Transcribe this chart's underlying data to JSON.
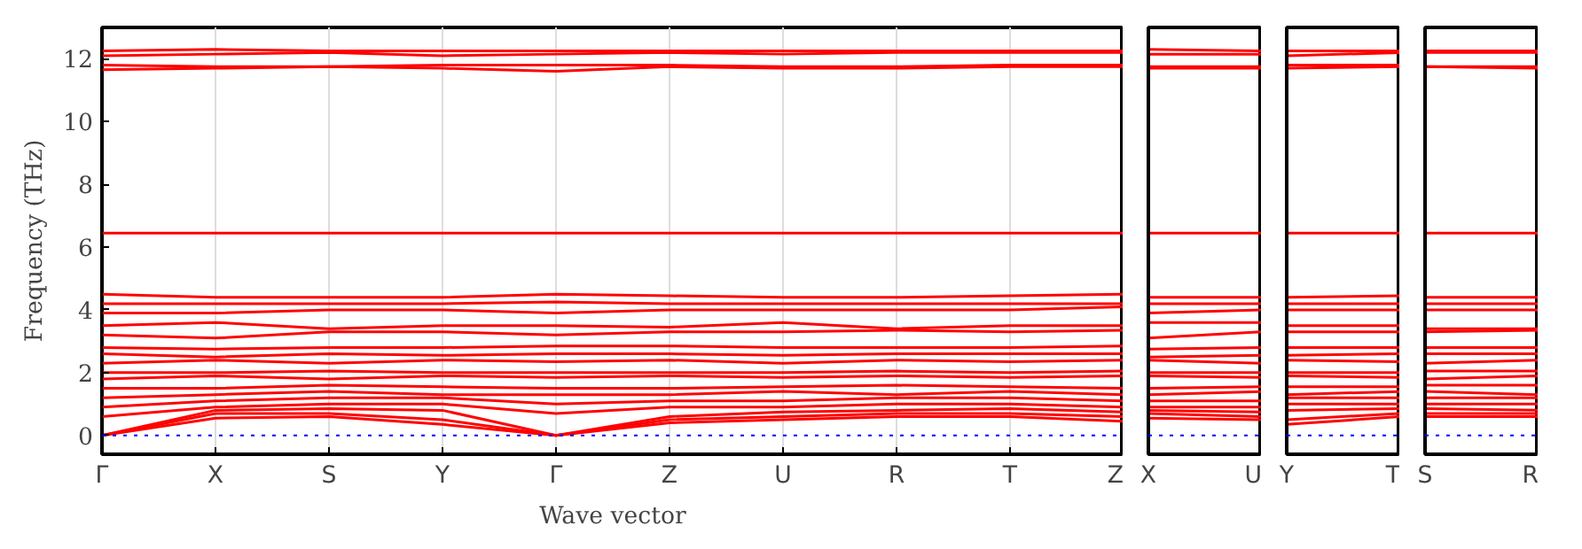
{
  "chart_data": [
    {
      "type": "line",
      "ylabel": "Frequency (THz)",
      "xlabel": "Wave vector",
      "color": "#ff0000",
      "line_style": "solid",
      "grid": "x",
      "ylim": [
        -0.6,
        13
      ],
      "yticks": [
        0,
        2,
        4,
        6,
        8,
        10,
        12
      ],
      "categories": [
        "Γ",
        "X",
        "S",
        "Y",
        "Γ",
        "Z",
        "U",
        "R",
        "T",
        "Z"
      ],
      "ref_lines": [
        {
          "axis": "y",
          "value": 0,
          "color": "#0000ff",
          "line_style": "dotted"
        }
      ],
      "series": [
        {
          "values": [
            0,
            0.55,
            0.6,
            0.35,
            0,
            0.4,
            0.5,
            0.6,
            0.6,
            0.45
          ]
        },
        {
          "values": [
            0,
            0.7,
            0.7,
            0.5,
            0,
            0.5,
            0.6,
            0.7,
            0.7,
            0.6
          ]
        },
        {
          "values": [
            0,
            0.8,
            0.85,
            0.8,
            0,
            0.6,
            0.75,
            0.8,
            0.85,
            0.75
          ]
        },
        {
          "values": [
            0.6,
            0.9,
            1.0,
            1.0,
            0.7,
            0.9,
            0.9,
            1.0,
            1.0,
            0.9
          ]
        },
        {
          "values": [
            0.9,
            1.1,
            1.2,
            1.2,
            1.0,
            1.1,
            1.1,
            1.2,
            1.2,
            1.1
          ]
        },
        {
          "values": [
            1.2,
            1.3,
            1.4,
            1.3,
            1.3,
            1.3,
            1.4,
            1.3,
            1.4,
            1.3
          ]
        },
        {
          "values": [
            1.5,
            1.5,
            1.6,
            1.55,
            1.5,
            1.5,
            1.55,
            1.6,
            1.55,
            1.5
          ]
        },
        {
          "values": [
            1.8,
            1.9,
            1.8,
            1.9,
            1.85,
            1.9,
            1.85,
            1.9,
            1.85,
            1.9
          ]
        },
        {
          "values": [
            2.0,
            2.0,
            2.05,
            2.0,
            2.0,
            2.0,
            2.0,
            2.05,
            2.0,
            2.05
          ]
        },
        {
          "values": [
            2.3,
            2.4,
            2.3,
            2.4,
            2.35,
            2.4,
            2.3,
            2.4,
            2.35,
            2.4
          ]
        },
        {
          "values": [
            2.6,
            2.5,
            2.6,
            2.55,
            2.6,
            2.6,
            2.55,
            2.6,
            2.6,
            2.6
          ]
        },
        {
          "values": [
            2.8,
            2.75,
            2.8,
            2.8,
            2.85,
            2.85,
            2.8,
            2.8,
            2.8,
            2.85
          ]
        },
        {
          "values": [
            3.2,
            3.1,
            3.3,
            3.3,
            3.2,
            3.3,
            3.3,
            3.35,
            3.3,
            3.35
          ]
        },
        {
          "values": [
            3.5,
            3.6,
            3.4,
            3.5,
            3.5,
            3.45,
            3.6,
            3.4,
            3.5,
            3.5
          ]
        },
        {
          "values": [
            3.9,
            3.9,
            4.0,
            4.0,
            3.9,
            4.0,
            4.0,
            4.0,
            4.0,
            4.1
          ]
        },
        {
          "values": [
            4.2,
            4.2,
            4.2,
            4.2,
            4.25,
            4.2,
            4.2,
            4.2,
            4.2,
            4.2
          ]
        },
        {
          "values": [
            4.5,
            4.4,
            4.4,
            4.4,
            4.5,
            4.45,
            4.4,
            4.4,
            4.45,
            4.5
          ]
        },
        {
          "values": [
            6.45,
            6.45,
            6.45,
            6.45,
            6.45,
            6.45,
            6.45,
            6.45,
            6.45,
            6.45
          ]
        },
        {
          "values": [
            11.65,
            11.7,
            11.75,
            11.7,
            11.6,
            11.75,
            11.7,
            11.7,
            11.75,
            11.75
          ]
        },
        {
          "values": [
            11.8,
            11.75,
            11.75,
            11.8,
            11.8,
            11.8,
            11.75,
            11.75,
            11.8,
            11.8
          ]
        },
        {
          "values": [
            12.1,
            12.15,
            12.2,
            12.1,
            12.15,
            12.2,
            12.15,
            12.2,
            12.2,
            12.2
          ]
        },
        {
          "values": [
            12.25,
            12.3,
            12.25,
            12.25,
            12.25,
            12.25,
            12.25,
            12.25,
            12.25,
            12.25
          ]
        }
      ]
    },
    {
      "type": "line",
      "color": "#ff0000",
      "line_style": "solid",
      "grid": "x",
      "tick_labels": "x",
      "ylim": [
        -0.6,
        13
      ],
      "yticks": [
        0,
        2,
        4,
        6,
        8,
        10,
        12
      ],
      "categories": [
        "X",
        "U"
      ],
      "ref_lines": [
        {
          "axis": "y",
          "value": 0,
          "color": "#0000ff",
          "line_style": "dotted"
        }
      ],
      "series": [
        {
          "values": [
            0.55,
            0.5
          ]
        },
        {
          "values": [
            0.7,
            0.6
          ]
        },
        {
          "values": [
            0.8,
            0.75
          ]
        },
        {
          "values": [
            0.9,
            0.9
          ]
        },
        {
          "values": [
            1.1,
            1.1
          ]
        },
        {
          "values": [
            1.3,
            1.4
          ]
        },
        {
          "values": [
            1.5,
            1.55
          ]
        },
        {
          "values": [
            1.9,
            1.85
          ]
        },
        {
          "values": [
            2.0,
            2.0
          ]
        },
        {
          "values": [
            2.4,
            2.3
          ]
        },
        {
          "values": [
            2.5,
            2.55
          ]
        },
        {
          "values": [
            2.75,
            2.8
          ]
        },
        {
          "values": [
            3.1,
            3.3
          ]
        },
        {
          "values": [
            3.6,
            3.6
          ]
        },
        {
          "values": [
            3.9,
            4.0
          ]
        },
        {
          "values": [
            4.2,
            4.2
          ]
        },
        {
          "values": [
            4.4,
            4.4
          ]
        },
        {
          "values": [
            6.45,
            6.45
          ]
        },
        {
          "values": [
            11.7,
            11.7
          ]
        },
        {
          "values": [
            11.75,
            11.75
          ]
        },
        {
          "values": [
            12.15,
            12.15
          ]
        },
        {
          "values": [
            12.3,
            12.25
          ]
        }
      ]
    },
    {
      "type": "line",
      "color": "#ff0000",
      "line_style": "solid",
      "grid": "x",
      "tick_labels": "x",
      "ylim": [
        -0.6,
        13
      ],
      "yticks": [
        0,
        2,
        4,
        6,
        8,
        10,
        12
      ],
      "categories": [
        "Y",
        "T"
      ],
      "ref_lines": [
        {
          "axis": "y",
          "value": 0,
          "color": "#0000ff",
          "line_style": "dotted"
        }
      ],
      "series": [
        {
          "values": [
            0.35,
            0.6
          ]
        },
        {
          "values": [
            0.5,
            0.7
          ]
        },
        {
          "values": [
            0.8,
            0.85
          ]
        },
        {
          "values": [
            1.0,
            1.0
          ]
        },
        {
          "values": [
            1.2,
            1.2
          ]
        },
        {
          "values": [
            1.3,
            1.4
          ]
        },
        {
          "values": [
            1.55,
            1.55
          ]
        },
        {
          "values": [
            1.9,
            1.85
          ]
        },
        {
          "values": [
            2.0,
            2.0
          ]
        },
        {
          "values": [
            2.4,
            2.35
          ]
        },
        {
          "values": [
            2.55,
            2.6
          ]
        },
        {
          "values": [
            2.8,
            2.8
          ]
        },
        {
          "values": [
            3.3,
            3.3
          ]
        },
        {
          "values": [
            3.5,
            3.5
          ]
        },
        {
          "values": [
            4.0,
            4.0
          ]
        },
        {
          "values": [
            4.2,
            4.2
          ]
        },
        {
          "values": [
            4.4,
            4.45
          ]
        },
        {
          "values": [
            6.45,
            6.45
          ]
        },
        {
          "values": [
            11.7,
            11.75
          ]
        },
        {
          "values": [
            11.8,
            11.8
          ]
        },
        {
          "values": [
            12.1,
            12.2
          ]
        },
        {
          "values": [
            12.25,
            12.25
          ]
        }
      ]
    },
    {
      "type": "line",
      "color": "#ff0000",
      "line_style": "solid",
      "grid": "x",
      "tick_labels": "x",
      "ylim": [
        -0.6,
        13
      ],
      "yticks": [
        0,
        2,
        4,
        6,
        8,
        10,
        12
      ],
      "categories": [
        "S",
        "R"
      ],
      "ref_lines": [
        {
          "axis": "y",
          "value": 0,
          "color": "#0000ff",
          "line_style": "dotted"
        }
      ],
      "series": [
        {
          "values": [
            0.6,
            0.6
          ]
        },
        {
          "values": [
            0.7,
            0.7
          ]
        },
        {
          "values": [
            0.85,
            0.8
          ]
        },
        {
          "values": [
            1.0,
            1.0
          ]
        },
        {
          "values": [
            1.2,
            1.2
          ]
        },
        {
          "values": [
            1.4,
            1.3
          ]
        },
        {
          "values": [
            1.6,
            1.6
          ]
        },
        {
          "values": [
            1.8,
            1.9
          ]
        },
        {
          "values": [
            2.05,
            2.05
          ]
        },
        {
          "values": [
            2.3,
            2.4
          ]
        },
        {
          "values": [
            2.6,
            2.6
          ]
        },
        {
          "values": [
            2.8,
            2.8
          ]
        },
        {
          "values": [
            3.3,
            3.35
          ]
        },
        {
          "values": [
            3.4,
            3.4
          ]
        },
        {
          "values": [
            4.0,
            4.0
          ]
        },
        {
          "values": [
            4.2,
            4.2
          ]
        },
        {
          "values": [
            4.4,
            4.4
          ]
        },
        {
          "values": [
            6.45,
            6.45
          ]
        },
        {
          "values": [
            11.75,
            11.7
          ]
        },
        {
          "values": [
            11.75,
            11.75
          ]
        },
        {
          "values": [
            12.2,
            12.2
          ]
        },
        {
          "values": [
            12.25,
            12.25
          ]
        }
      ]
    }
  ]
}
